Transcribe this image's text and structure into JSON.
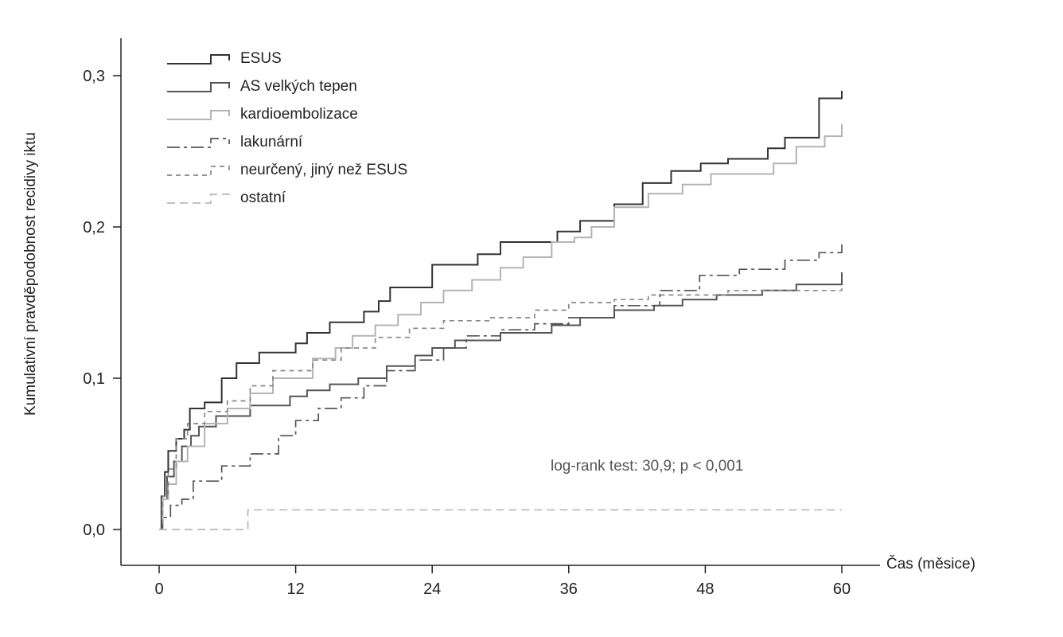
{
  "chart_data": {
    "type": "line",
    "step": true,
    "xlabel": "Čas (měsice)",
    "ylabel": "Kumulativní pravděpodobnost recidivy iktu",
    "xlim": [
      0,
      60
    ],
    "ylim": [
      0,
      0.3
    ],
    "x_ticks": [
      0,
      12,
      24,
      36,
      48,
      60
    ],
    "x_tick_labels": [
      "0",
      "12",
      "24",
      "36",
      "48",
      "60"
    ],
    "y_ticks": [
      0,
      0.1,
      0.2,
      0.3
    ],
    "y_tick_labels": [
      "0,0",
      "0,1",
      "0,2",
      "0,3"
    ],
    "grid": false,
    "legend_position": "top-left",
    "annotation": "log-rank test: 30,9; p < 0,001",
    "series": [
      {
        "name": "ESUS",
        "color": "#333333",
        "dash": "solid",
        "width": 2,
        "x": [
          0,
          0.2,
          0.5,
          0.8,
          1.5,
          2.2,
          2.7,
          4,
          5.5,
          6.8,
          8.8,
          12,
          13,
          15,
          18,
          19.3,
          20.3,
          24,
          28,
          30,
          35,
          37,
          40,
          42.5,
          45,
          47.6,
          50,
          53.5,
          55,
          58,
          60
        ],
        "y": [
          0,
          0.022,
          0.038,
          0.052,
          0.06,
          0.066,
          0.08,
          0.084,
          0.1,
          0.11,
          0.117,
          0.123,
          0.13,
          0.137,
          0.144,
          0.151,
          0.16,
          0.175,
          0.182,
          0.19,
          0.197,
          0.204,
          0.215,
          0.229,
          0.237,
          0.242,
          0.245,
          0.252,
          0.259,
          0.285,
          0.29
        ]
      },
      {
        "name": "AS velkých tepen",
        "color": "#555555",
        "dash": "solid",
        "width": 2,
        "x": [
          0,
          0.3,
          0.7,
          1.3,
          2,
          2.8,
          3.5,
          5,
          8,
          11.5,
          13,
          15,
          17.5,
          20,
          22.5,
          24,
          26,
          30,
          34.5,
          37,
          40,
          43.5,
          46,
          49,
          53,
          56,
          60
        ],
        "y": [
          0,
          0.02,
          0.035,
          0.045,
          0.055,
          0.062,
          0.068,
          0.075,
          0.082,
          0.088,
          0.092,
          0.096,
          0.1,
          0.108,
          0.115,
          0.12,
          0.125,
          0.13,
          0.135,
          0.14,
          0.145,
          0.148,
          0.152,
          0.155,
          0.158,
          0.162,
          0.17
        ]
      },
      {
        "name": "kardioembolizace",
        "color": "#b4b4b4",
        "dash": "solid",
        "width": 2,
        "x": [
          0,
          0.3,
          0.8,
          1.5,
          2.5,
          4,
          6,
          8,
          10,
          13.5,
          15.5,
          17,
          19,
          21,
          23,
          25,
          27.5,
          30,
          32,
          34.5,
          36.5,
          38,
          40,
          43,
          46,
          48.5,
          54,
          56,
          58.5,
          60
        ],
        "y": [
          0,
          0.02,
          0.03,
          0.045,
          0.055,
          0.07,
          0.08,
          0.09,
          0.1,
          0.113,
          0.12,
          0.128,
          0.135,
          0.142,
          0.15,
          0.158,
          0.165,
          0.173,
          0.18,
          0.19,
          0.193,
          0.2,
          0.213,
          0.222,
          0.228,
          0.235,
          0.242,
          0.253,
          0.26,
          0.268
        ]
      },
      {
        "name": "lakunární",
        "color": "#555555",
        "dash": "16,5,4,5",
        "width": 1.7,
        "x": [
          0,
          0.3,
          1,
          2,
          3,
          5.5,
          8,
          10.5,
          12,
          14,
          16,
          18,
          20,
          22.5,
          25,
          27,
          30,
          33,
          36,
          40,
          44,
          47.5,
          51,
          55,
          58,
          60
        ],
        "y": [
          0,
          0.008,
          0.016,
          0.02,
          0.032,
          0.042,
          0.05,
          0.062,
          0.072,
          0.08,
          0.087,
          0.095,
          0.105,
          0.112,
          0.12,
          0.128,
          0.132,
          0.136,
          0.14,
          0.148,
          0.158,
          0.168,
          0.172,
          0.178,
          0.183,
          0.19
        ]
      },
      {
        "name": "neurčený, jiný než ESUS",
        "color": "#888888",
        "dash": "6,5",
        "width": 1.7,
        "x": [
          0,
          0.3,
          0.8,
          1.5,
          2.5,
          4,
          6,
          8,
          10,
          13.5,
          16,
          19,
          22,
          25,
          29,
          33,
          36,
          40,
          43,
          50,
          60
        ],
        "y": [
          0,
          0.022,
          0.04,
          0.06,
          0.07,
          0.078,
          0.085,
          0.095,
          0.105,
          0.112,
          0.12,
          0.127,
          0.133,
          0.138,
          0.14,
          0.145,
          0.15,
          0.152,
          0.155,
          0.158,
          0.16
        ]
      },
      {
        "name": "ostatní",
        "color": "#b8b8b8",
        "dash": "10,6",
        "width": 1.7,
        "x": [
          0,
          7.8,
          60
        ],
        "y": [
          0,
          0.013,
          0.013
        ]
      }
    ]
  }
}
